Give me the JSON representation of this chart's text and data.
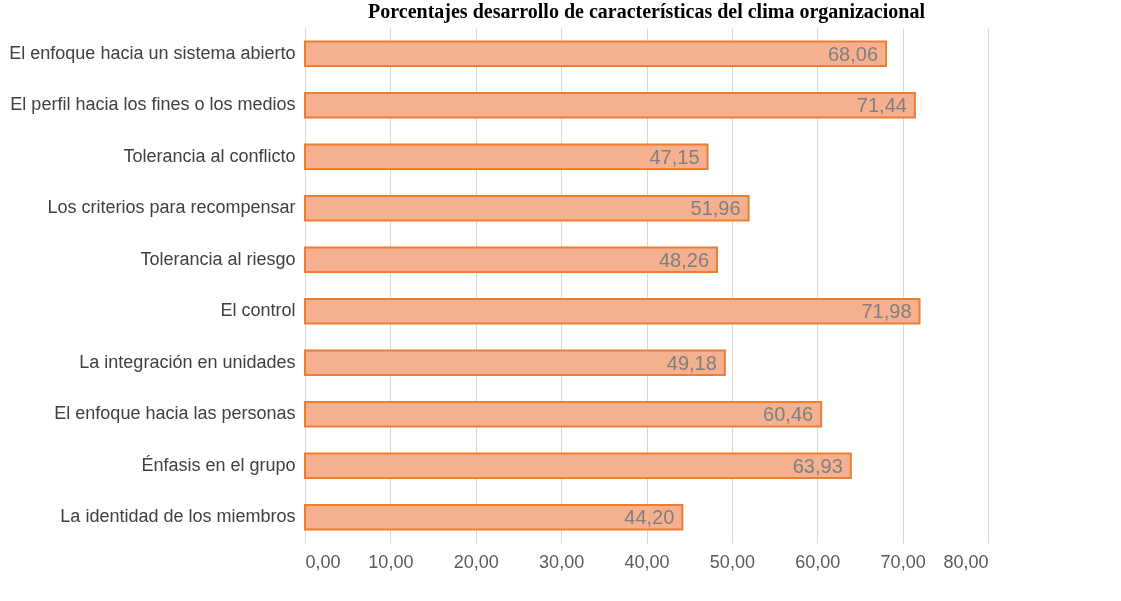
{
  "chart_data": {
    "type": "bar",
    "orientation": "horizontal",
    "title": "Porcentajes desarrollo de características del clima organizacional",
    "categories": [
      "El enfoque hacia un sistema abierto",
      "El perfil hacia los fines o los medios",
      "Tolerancia al conflicto",
      "Los criterios para recompensar",
      "Tolerancia al riesgo",
      "El control",
      "La integración en unidades",
      "El enfoque hacia las personas",
      "Énfasis en el grupo",
      "La identidad de los miembros"
    ],
    "values": [
      68.06,
      71.44,
      47.15,
      51.96,
      48.26,
      71.98,
      49.18,
      60.46,
      63.93,
      44.2
    ],
    "value_labels": [
      "68,06",
      "71,44",
      "47,15",
      "51,96",
      "48,26",
      "71,98",
      "49,18",
      "60,46",
      "63,93",
      "44,20"
    ],
    "color": "#f4b08f",
    "xlim": [
      0,
      80
    ],
    "xticks": [
      {
        "value": 0,
        "label": "0,00"
      },
      {
        "value": 10,
        "label": "10,00"
      },
      {
        "value": 20,
        "label": "20,00"
      },
      {
        "value": 30,
        "label": "30,00"
      },
      {
        "value": 40,
        "label": "40,00"
      },
      {
        "value": 50,
        "label": "50,00"
      },
      {
        "value": 60,
        "label": "60,00"
      },
      {
        "value": 70,
        "label": "70,00"
      },
      {
        "value": 80,
        "label": "80,00"
      }
    ],
    "grid": "x"
  }
}
